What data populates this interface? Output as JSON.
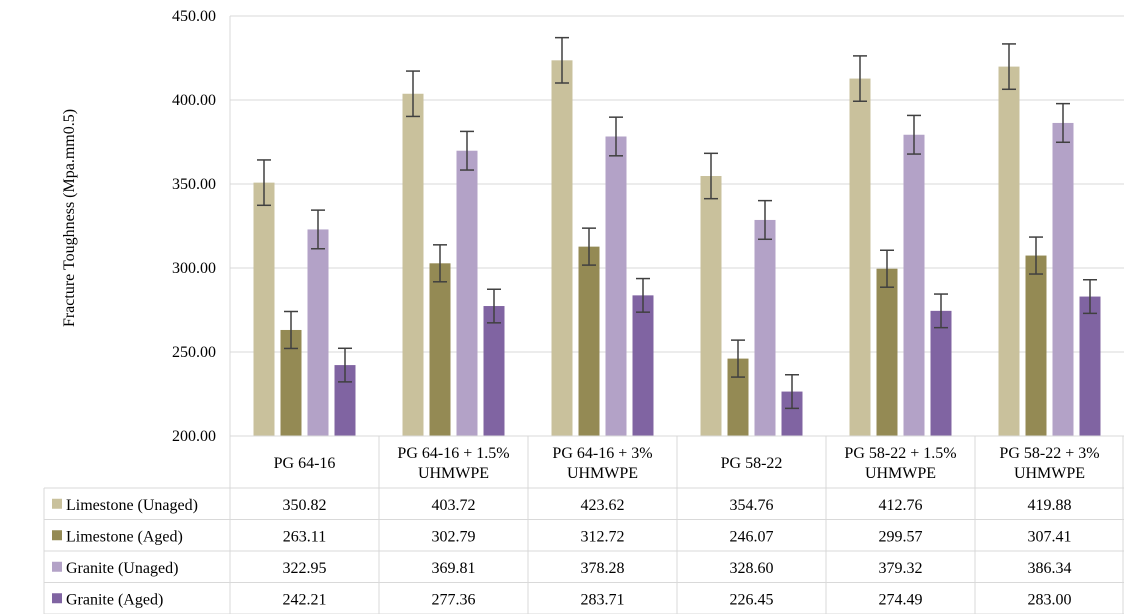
{
  "chart_data": {
    "type": "bar",
    "title": "",
    "xlabel": "",
    "ylabel": "Fracture Toughness (Mpa.mm0.5)",
    "ylim": [
      200,
      450
    ],
    "yticks": [
      "200.00",
      "250.00",
      "300.00",
      "350.00",
      "400.00",
      "450.00"
    ],
    "grid": true,
    "legend": "data-table",
    "error_bars": true,
    "categories": [
      [
        "PG 64-16"
      ],
      [
        "PG 64-16 + 1.5%",
        "UHMWPE"
      ],
      [
        "PG 64-16 + 3%",
        "UHMWPE"
      ],
      [
        "PG 58-22"
      ],
      [
        "PG 58-22 + 1.5%",
        "UHMWPE"
      ],
      [
        "PG 58-22 + 3%",
        "UHMWPE"
      ]
    ],
    "series": [
      {
        "name": "Limestone (Unaged)",
        "color": "#c9c19c",
        "values": [
          350.82,
          403.72,
          423.62,
          354.76,
          412.76,
          419.88
        ],
        "labels": [
          "350.82",
          "403.72",
          "423.62",
          "354.76",
          "412.76",
          "419.88"
        ],
        "errors": [
          13.5,
          13.5,
          13.5,
          13.5,
          13.5,
          13.5
        ]
      },
      {
        "name": "Limestone (Aged)",
        "color": "#948a54",
        "values": [
          263.11,
          302.79,
          312.72,
          246.07,
          299.57,
          307.41
        ],
        "labels": [
          "263.11",
          "302.79",
          "312.72",
          "246.07",
          "299.57",
          "307.41"
        ],
        "errors": [
          11,
          11,
          11,
          11,
          11,
          11
        ]
      },
      {
        "name": "Granite (Unaged)",
        "color": "#b3a2c7",
        "values": [
          322.95,
          369.81,
          378.28,
          328.6,
          379.32,
          386.34
        ],
        "labels": [
          "322.95",
          "369.81",
          "378.28",
          "328.60",
          "379.32",
          "386.34"
        ],
        "errors": [
          11.5,
          11.5,
          11.5,
          11.5,
          11.5,
          11.5
        ]
      },
      {
        "name": "Granite (Aged)",
        "color": "#8064a2",
        "values": [
          242.21,
          277.36,
          283.71,
          226.45,
          274.49,
          283.0
        ],
        "labels": [
          "242.21",
          "277.36",
          "283.71",
          "226.45",
          "274.49",
          "283.00"
        ],
        "errors": [
          10,
          10,
          10,
          10,
          10,
          10
        ]
      }
    ]
  }
}
